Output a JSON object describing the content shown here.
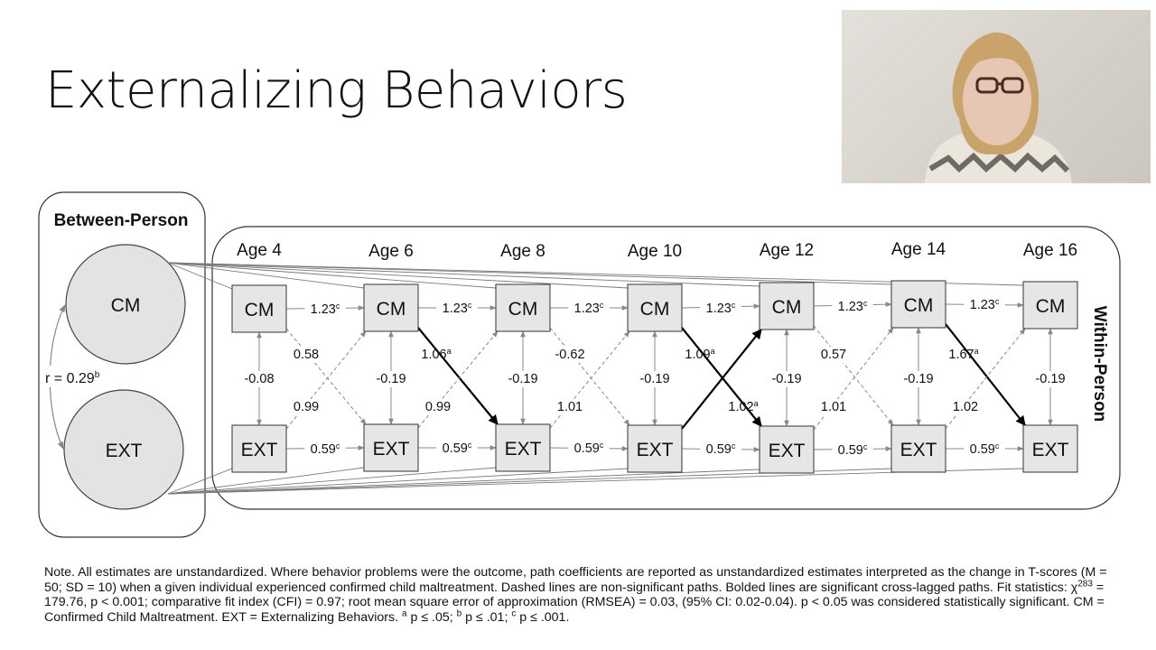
{
  "slide": {
    "title": "Externalizing Behaviors"
  },
  "webcam": {
    "icon": "presenter-video-feed"
  },
  "diagram": {
    "between_label": "Between-Person",
    "within_label": "Within-Person",
    "between_nodes": {
      "cm": "CM",
      "ext": "EXT"
    },
    "between_corr": "r = 0.29",
    "between_corr_sup": "b",
    "ages": [
      "Age 4",
      "Age 6",
      "Age 8",
      "Age 10",
      "Age 12",
      "Age 14",
      "Age 16"
    ],
    "cm_label": "CM",
    "ext_label": "EXT",
    "cm_ar": [
      {
        "v": "1.23",
        "s": "c"
      },
      {
        "v": "1.23",
        "s": "c"
      },
      {
        "v": "1.23",
        "s": "c"
      },
      {
        "v": "1.23",
        "s": "c"
      },
      {
        "v": "1.23",
        "s": "c"
      },
      {
        "v": "1.23",
        "s": "c"
      }
    ],
    "ext_ar": [
      {
        "v": "0.59",
        "s": "c"
      },
      {
        "v": "0.59",
        "s": "c"
      },
      {
        "v": "0.59",
        "s": "c"
      },
      {
        "v": "0.59",
        "s": "c"
      },
      {
        "v": "0.59",
        "s": "c"
      },
      {
        "v": "0.59",
        "s": "c"
      }
    ],
    "within_cov": [
      "-0.08",
      "-0.19",
      "-0.19",
      "-0.19",
      "-0.19",
      "-0.19",
      "-0.19"
    ],
    "cm_to_ext": [
      {
        "v": "0.58",
        "s": "",
        "sig": false
      },
      {
        "v": "1.06",
        "s": "a",
        "sig": true
      },
      {
        "v": "-0.62",
        "s": "",
        "sig": false
      },
      {
        "v": "1.09",
        "s": "a",
        "sig": true
      },
      {
        "v": "0.57",
        "s": "",
        "sig": false
      },
      {
        "v": "1.67",
        "s": "a",
        "sig": true
      }
    ],
    "ext_to_cm": [
      {
        "v": "0.99",
        "s": "",
        "sig": false
      },
      {
        "v": "0.99",
        "s": "",
        "sig": false
      },
      {
        "v": "1.01",
        "s": "",
        "sig": false
      },
      {
        "v": "1.02",
        "s": "a",
        "sig": true
      },
      {
        "v": "1.01",
        "s": "",
        "sig": false
      },
      {
        "v": "1.02",
        "s": "",
        "sig": false
      }
    ]
  },
  "note": {
    "p1": "Note. All estimates are unstandardized. Where behavior problems were the outcome, path coefficients are reported as unstandardized estimates interpreted as the change in T-scores (M = 50; SD = 10) when a given individual experienced confirmed child maltreatment. Dashed lines are non-significant paths. Bolded lines are significant cross-lagged paths. Fit statistics: χ",
    "chi_sup": "283",
    "p2": " = 179.76, p < 0.001; comparative fit index (CFI) = 0.97; root mean square error of approximation (RMSEA) = 0.03, (95% CI: 0.02-0.04). p < 0.05 was considered statistically significant. CM = Confirmed Child Maltreatment. EXT = Externalizing Behaviors. ",
    "sup_a": "a",
    "t_a": " p ≤ .05; ",
    "sup_b": "b",
    "t_b": " p ≤ .01; ",
    "sup_c": "c",
    "t_c": " p ≤ .001."
  }
}
